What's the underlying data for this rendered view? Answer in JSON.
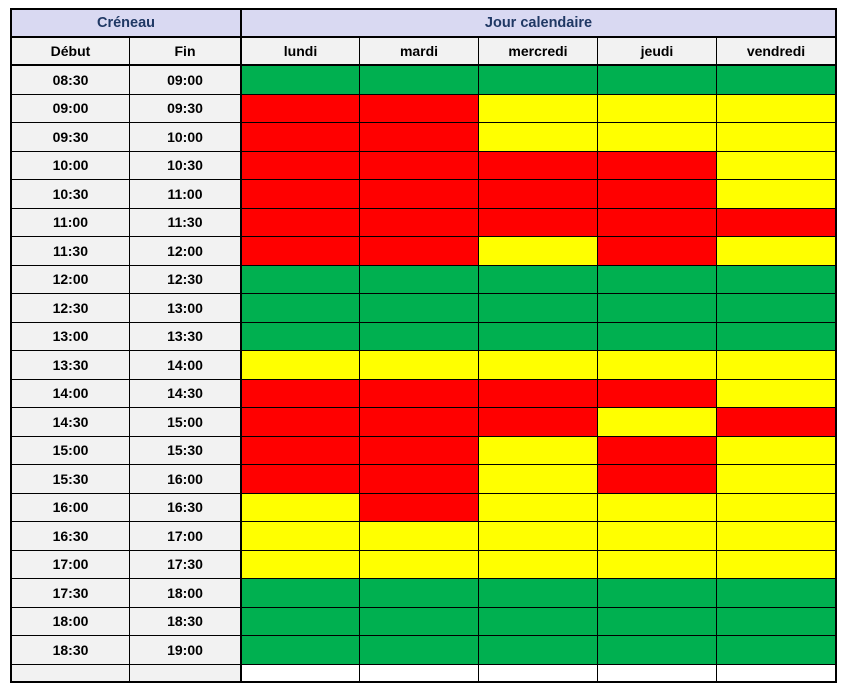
{
  "header": {
    "creneau": "Créneau",
    "jour_calendaire": "Jour calendaire",
    "debut": "Début",
    "fin": "Fin",
    "days": [
      "lundi",
      "mardi",
      "mercredi",
      "jeudi",
      "vendredi"
    ]
  },
  "status_colors": {
    "green": "#00B050",
    "red": "#FF0000",
    "yellow": "#FFFF00"
  },
  "header_colors": {
    "section_bg": "#D9D9F2",
    "section_text": "#1F3864",
    "label_bg": "#F2F2F2",
    "label_text": "#000000"
  },
  "chart_data": {
    "type": "heatmap",
    "title": "",
    "x_labels": [
      "lundi",
      "mardi",
      "mercredi",
      "jeudi",
      "vendredi"
    ],
    "row_header_labels": [
      "Début",
      "Fin"
    ],
    "section_labels": [
      "Créneau",
      "Jour calendaire"
    ],
    "legend_position": "none",
    "rows": [
      {
        "debut": "08:30",
        "fin": "09:00",
        "statuses": [
          "green",
          "green",
          "green",
          "green",
          "green"
        ]
      },
      {
        "debut": "09:00",
        "fin": "09:30",
        "statuses": [
          "red",
          "red",
          "yellow",
          "yellow",
          "yellow"
        ]
      },
      {
        "debut": "09:30",
        "fin": "10:00",
        "statuses": [
          "red",
          "red",
          "yellow",
          "yellow",
          "yellow"
        ]
      },
      {
        "debut": "10:00",
        "fin": "10:30",
        "statuses": [
          "red",
          "red",
          "red",
          "red",
          "yellow"
        ]
      },
      {
        "debut": "10:30",
        "fin": "11:00",
        "statuses": [
          "red",
          "red",
          "red",
          "red",
          "yellow"
        ]
      },
      {
        "debut": "11:00",
        "fin": "11:30",
        "statuses": [
          "red",
          "red",
          "red",
          "red",
          "red"
        ]
      },
      {
        "debut": "11:30",
        "fin": "12:00",
        "statuses": [
          "red",
          "red",
          "yellow",
          "red",
          "yellow"
        ]
      },
      {
        "debut": "12:00",
        "fin": "12:30",
        "statuses": [
          "green",
          "green",
          "green",
          "green",
          "green"
        ]
      },
      {
        "debut": "12:30",
        "fin": "13:00",
        "statuses": [
          "green",
          "green",
          "green",
          "green",
          "green"
        ]
      },
      {
        "debut": "13:00",
        "fin": "13:30",
        "statuses": [
          "green",
          "green",
          "green",
          "green",
          "green"
        ]
      },
      {
        "debut": "13:30",
        "fin": "14:00",
        "statuses": [
          "yellow",
          "yellow",
          "yellow",
          "yellow",
          "yellow"
        ]
      },
      {
        "debut": "14:00",
        "fin": "14:30",
        "statuses": [
          "red",
          "red",
          "red",
          "red",
          "yellow"
        ]
      },
      {
        "debut": "14:30",
        "fin": "15:00",
        "statuses": [
          "red",
          "red",
          "red",
          "yellow",
          "red"
        ]
      },
      {
        "debut": "15:00",
        "fin": "15:30",
        "statuses": [
          "red",
          "red",
          "yellow",
          "red",
          "yellow"
        ]
      },
      {
        "debut": "15:30",
        "fin": "16:00",
        "statuses": [
          "red",
          "red",
          "yellow",
          "red",
          "yellow"
        ]
      },
      {
        "debut": "16:00",
        "fin": "16:30",
        "statuses": [
          "yellow",
          "red",
          "yellow",
          "yellow",
          "yellow"
        ]
      },
      {
        "debut": "16:30",
        "fin": "17:00",
        "statuses": [
          "yellow",
          "yellow",
          "yellow",
          "yellow",
          "yellow"
        ]
      },
      {
        "debut": "17:00",
        "fin": "17:30",
        "statuses": [
          "yellow",
          "yellow",
          "yellow",
          "yellow",
          "yellow"
        ]
      },
      {
        "debut": "17:30",
        "fin": "18:00",
        "statuses": [
          "green",
          "green",
          "green",
          "green",
          "green"
        ]
      },
      {
        "debut": "18:00",
        "fin": "18:30",
        "statuses": [
          "green",
          "green",
          "green",
          "green",
          "green"
        ]
      },
      {
        "debut": "18:30",
        "fin": "19:00",
        "statuses": [
          "green",
          "green",
          "green",
          "green",
          "green"
        ]
      }
    ]
  }
}
